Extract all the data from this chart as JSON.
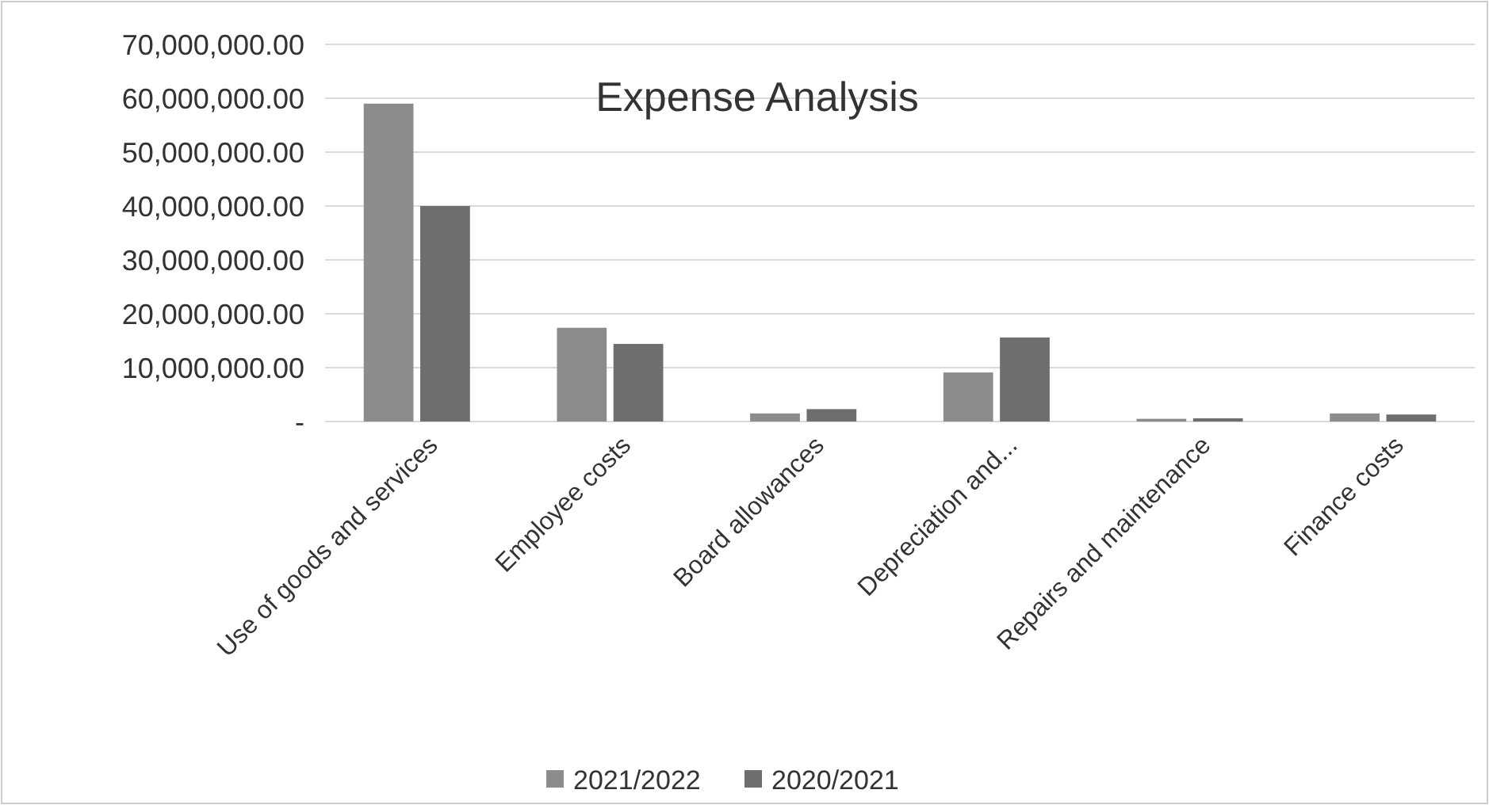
{
  "chart_data": {
    "type": "bar",
    "title": "Expense Analysis",
    "categories": [
      "Use of goods and services",
      "Employee costs",
      "Board allowances",
      "Depreciation and...",
      "Repairs and maintenance",
      "Finance costs"
    ],
    "series": [
      {
        "name": "2021/2022",
        "color": "#8c8c8c",
        "values": [
          59000000,
          17400000,
          1500000,
          9100000,
          500000,
          1500000
        ]
      },
      {
        "name": "2020/2021",
        "color": "#6e6e6e",
        "values": [
          40000000,
          14400000,
          2300000,
          15600000,
          600000,
          1300000
        ]
      }
    ],
    "ylim": [
      0,
      70000000
    ],
    "yticks": [
      {
        "value": 0,
        "label": "-"
      },
      {
        "value": 10000000,
        "label": "10,000,000.00"
      },
      {
        "value": 20000000,
        "label": "20,000,000.00"
      },
      {
        "value": 30000000,
        "label": "30,000,000.00"
      },
      {
        "value": 40000000,
        "label": "40,000,000.00"
      },
      {
        "value": 50000000,
        "label": "50,000,000.00"
      },
      {
        "value": 60000000,
        "label": "60,000,000.00"
      },
      {
        "value": 70000000,
        "label": "70,000,000.00"
      }
    ],
    "grid": "y",
    "legend": "bottom"
  }
}
